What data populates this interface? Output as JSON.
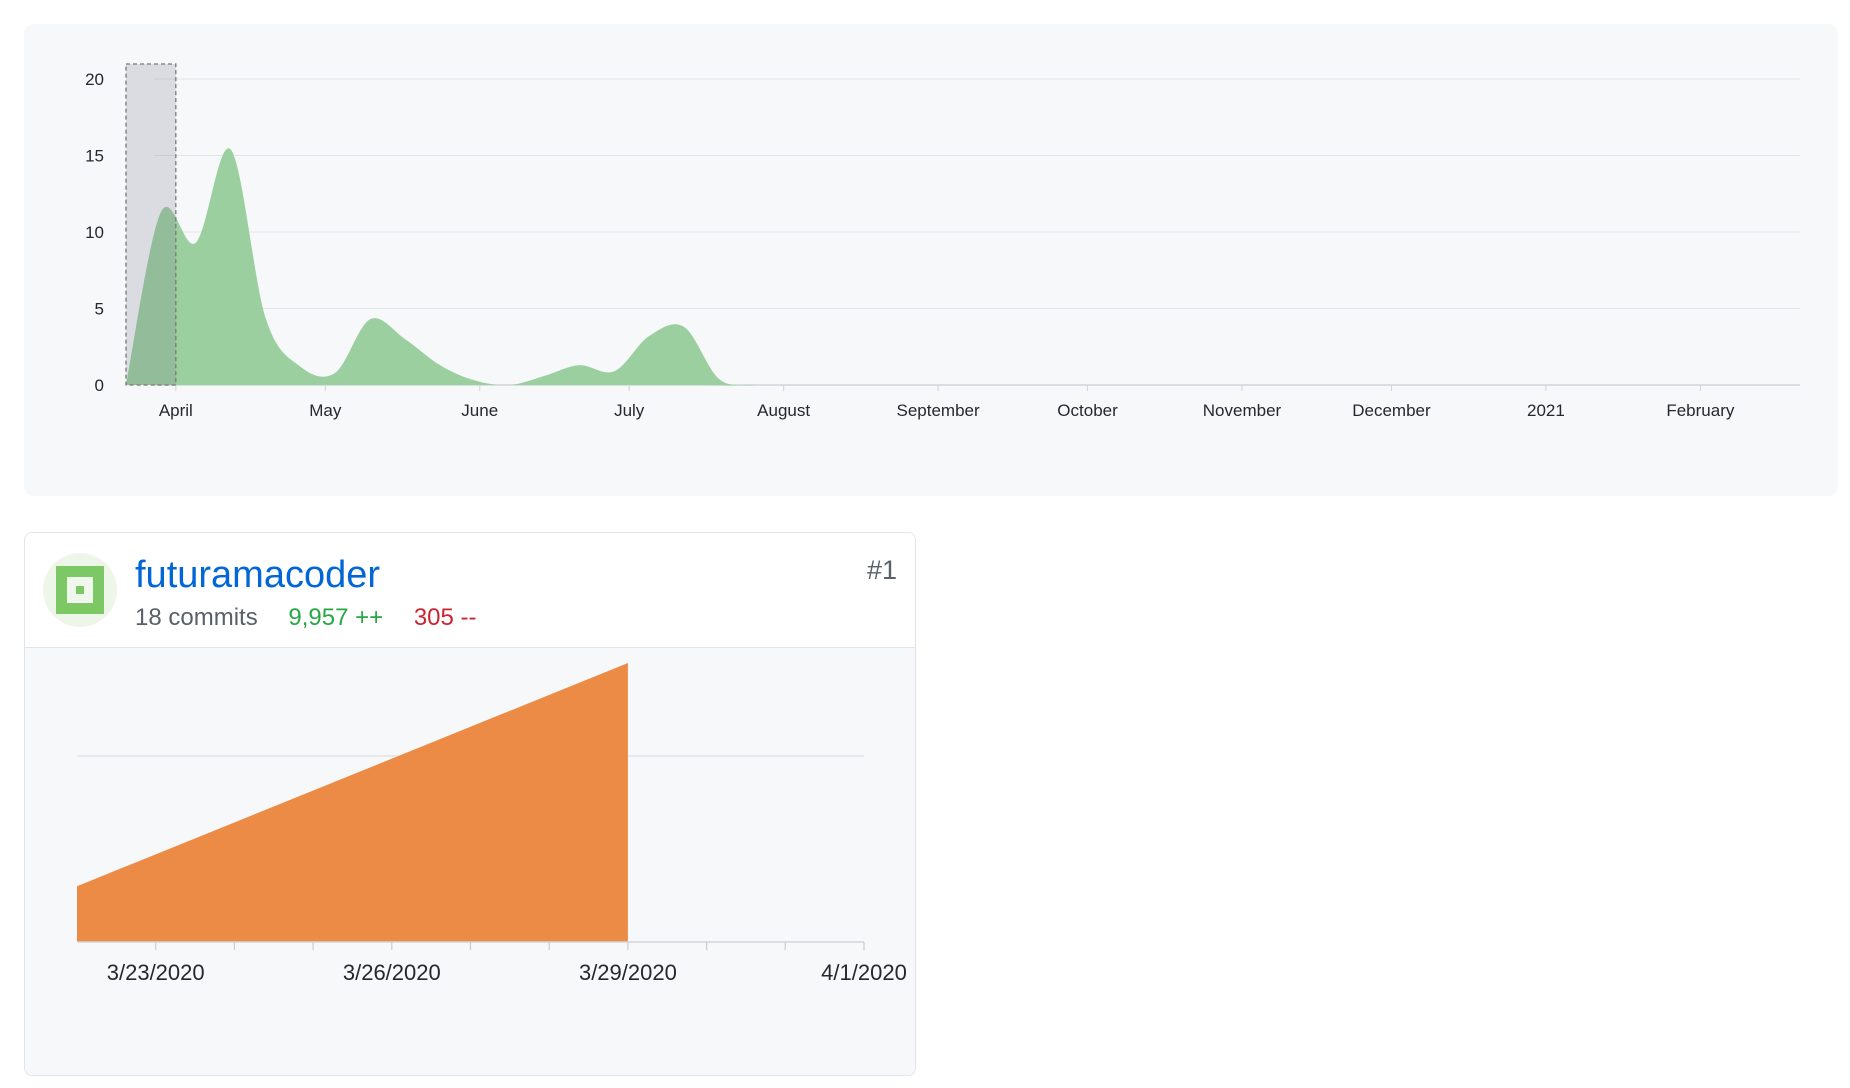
{
  "overview": {
    "chart_data": {
      "type": "area",
      "title": "",
      "xlabel": "",
      "ylabel": "",
      "ylim": [
        0,
        20
      ],
      "yticks": [
        0,
        5,
        10,
        15,
        20
      ],
      "x_tick_labels": [
        "April",
        "May",
        "June",
        "July",
        "August",
        "September",
        "October",
        "November",
        "December",
        "2021",
        "February"
      ],
      "grid": true,
      "selection": {
        "from": "2020-03-22",
        "to": "2020-04-01"
      },
      "series": [
        {
          "color": "#9ccf9f",
          "points": [
            [
              "2020-03-22",
              0
            ],
            [
              "2020-03-29",
              11.3
            ],
            [
              "2020-04-05",
              9.3
            ],
            [
              "2020-04-12",
              15.4
            ],
            [
              "2020-04-19",
              4.4
            ],
            [
              "2020-04-26",
              1.2
            ],
            [
              "2020-05-03",
              0.8
            ],
            [
              "2020-05-10",
              4.3
            ],
            [
              "2020-05-17",
              3.0
            ],
            [
              "2020-05-24",
              1.3
            ],
            [
              "2020-05-31",
              0.3
            ],
            [
              "2020-06-07",
              0
            ],
            [
              "2020-06-14",
              0.6
            ],
            [
              "2020-06-21",
              1.3
            ],
            [
              "2020-06-28",
              0.9
            ],
            [
              "2020-07-05",
              3.2
            ],
            [
              "2020-07-12",
              3.8
            ],
            [
              "2020-07-19",
              0.4
            ],
            [
              "2020-07-26",
              0
            ],
            [
              "2020-08-02",
              0
            ],
            [
              "2021-02-20",
              0
            ]
          ]
        }
      ]
    }
  },
  "contributor": {
    "username": "futuramacoder",
    "commits_text": "18 commits",
    "additions_text": "9,957 ++",
    "deletions_text": "305 --",
    "rank": "#1",
    "chart_data": {
      "type": "area",
      "title": "",
      "xlabel": "",
      "ylabel": "",
      "x_tick_labels": [
        "3/23/2020",
        "3/26/2020",
        "3/29/2020",
        "4/1/2020"
      ],
      "xlim": [
        "2020-03-22",
        "2020-04-01"
      ],
      "ylim": [
        0,
        15
      ],
      "gridline_at": 10,
      "series": [
        {
          "color": "#ec8b46",
          "points": [
            [
              "2020-03-22",
              3
            ],
            [
              "2020-03-29",
              15
            ]
          ]
        }
      ]
    }
  },
  "colors": {
    "link": "#0366d6",
    "additions": "#28a745",
    "deletions": "#cb2431",
    "overview_area": "#9ccf9f",
    "contributor_area": "#ec8b46"
  }
}
